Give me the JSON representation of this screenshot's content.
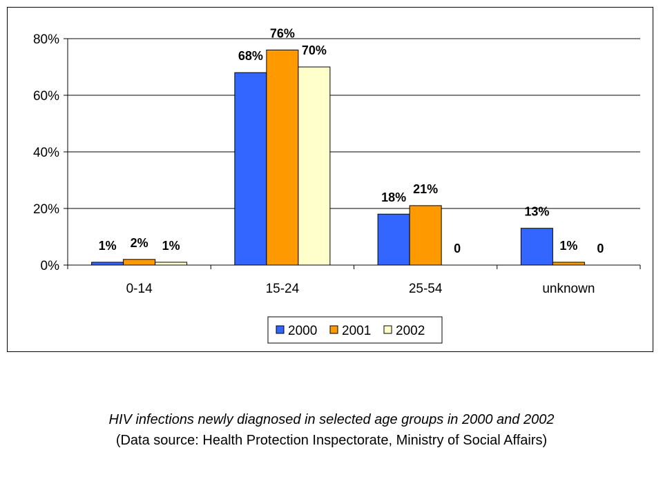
{
  "chart_data": {
    "type": "bar",
    "categories": [
      "0-14",
      "15-24",
      "25-54",
      "unknown"
    ],
    "series": [
      {
        "name": "2000",
        "values": [
          1,
          68,
          18,
          13
        ],
        "labels": [
          "1%",
          "68%",
          "18%",
          "13%"
        ],
        "color": "#3366ff"
      },
      {
        "name": "2001",
        "values": [
          2,
          76,
          21,
          1
        ],
        "labels": [
          "2%",
          "76%",
          "21%",
          "1%"
        ],
        "color": "#ff9900"
      },
      {
        "name": "2002",
        "values": [
          1,
          70,
          0,
          0
        ],
        "labels": [
          "1%",
          "70%",
          "0",
          "0"
        ],
        "color": "#ffffcc"
      }
    ],
    "yticks": [
      "0%",
      "20%",
      "40%",
      "60%",
      "80%"
    ],
    "ylim": [
      0,
      80
    ],
    "grid": true,
    "legend_position": "bottom"
  },
  "caption": {
    "title": "HIV infections newly diagnosed in selected age groups in 2000 and 2002",
    "source": "(Data source: Health Protection Inspectorate, Ministry of Social Affairs)"
  }
}
